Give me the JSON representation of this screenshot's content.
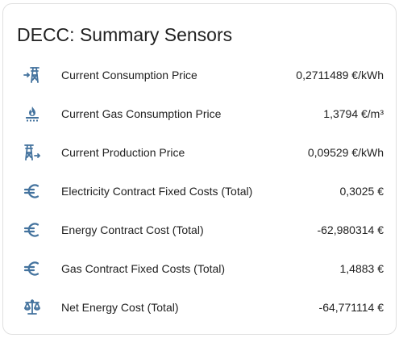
{
  "card": {
    "title": "DECC: Summary Sensors",
    "icon_color": "#44739e",
    "rows": [
      {
        "icon": "transmission-tower-import-icon",
        "label": "Current Consumption Price",
        "value": "0,2711489 €/kWh"
      },
      {
        "icon": "gas-burner-icon",
        "label": "Current Gas Consumption Price",
        "value": "1,3794 €/m³"
      },
      {
        "icon": "transmission-tower-export-icon",
        "label": "Current Production Price",
        "value": "0,09529 €/kWh"
      },
      {
        "icon": "currency-eur-icon",
        "label": "Electricity Contract Fixed Costs (Total)",
        "value": "0,3025 €"
      },
      {
        "icon": "currency-eur-icon",
        "label": "Energy Contract Cost (Total)",
        "value": "-62,980314 €"
      },
      {
        "icon": "currency-eur-icon",
        "label": "Gas Contract Fixed Costs (Total)",
        "value": "1,4883 €"
      },
      {
        "icon": "scale-balance-icon",
        "label": "Net Energy Cost (Total)",
        "value": "-64,771114 €"
      }
    ]
  }
}
